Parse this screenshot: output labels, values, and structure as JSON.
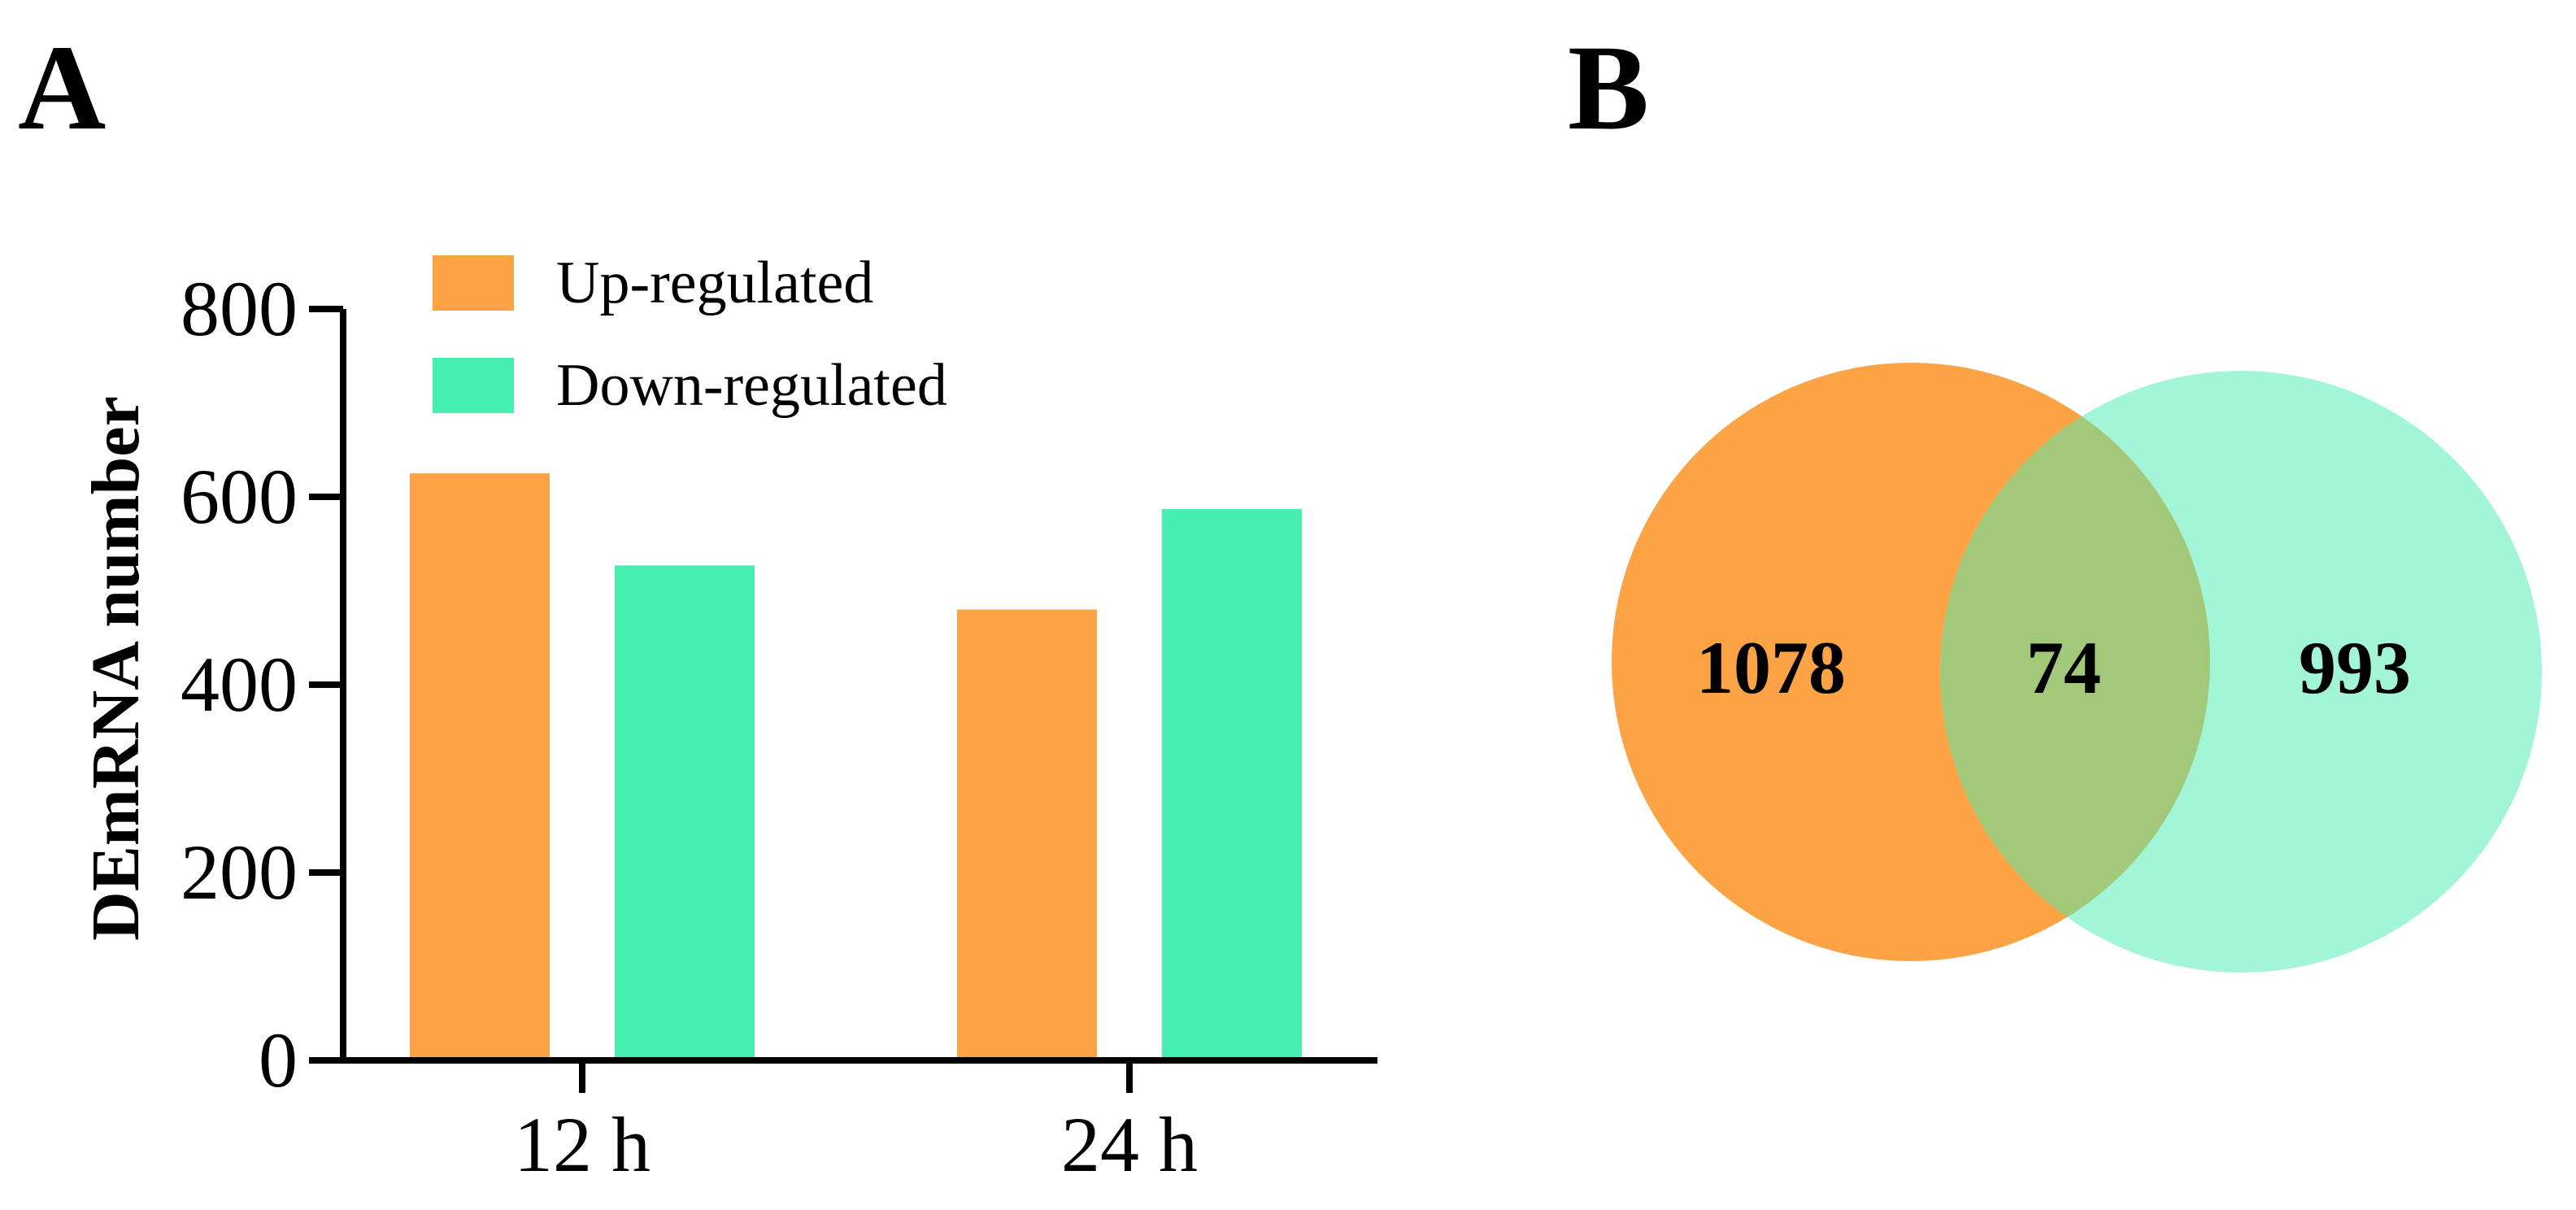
{
  "panels": {
    "a_label": "A",
    "b_label": "B"
  },
  "chart_data": [
    {
      "type": "bar",
      "categories": [
        "12 h",
        "24 h"
      ],
      "series": [
        {
          "name": "Up-regulated",
          "values": [
            625,
            480
          ],
          "color": "#FBA345"
        },
        {
          "name": "Down-regulated",
          "values": [
            527,
            587
          ],
          "color": "#46EFB0"
        }
      ],
      "ylabel": "DEmRNA number",
      "xlabel": "",
      "ylim": [
        0,
        800
      ],
      "yticks": [
        0,
        200,
        400,
        600,
        800
      ],
      "grid": false,
      "legend": "top"
    },
    {
      "type": "venn",
      "sets": [
        {
          "color": "#FBA345"
        },
        {
          "color": "#A2F5D6"
        }
      ],
      "overlap_color": "#A2C979",
      "counts": {
        "left_only": "1078",
        "both": "74",
        "right_only": "993"
      }
    }
  ]
}
